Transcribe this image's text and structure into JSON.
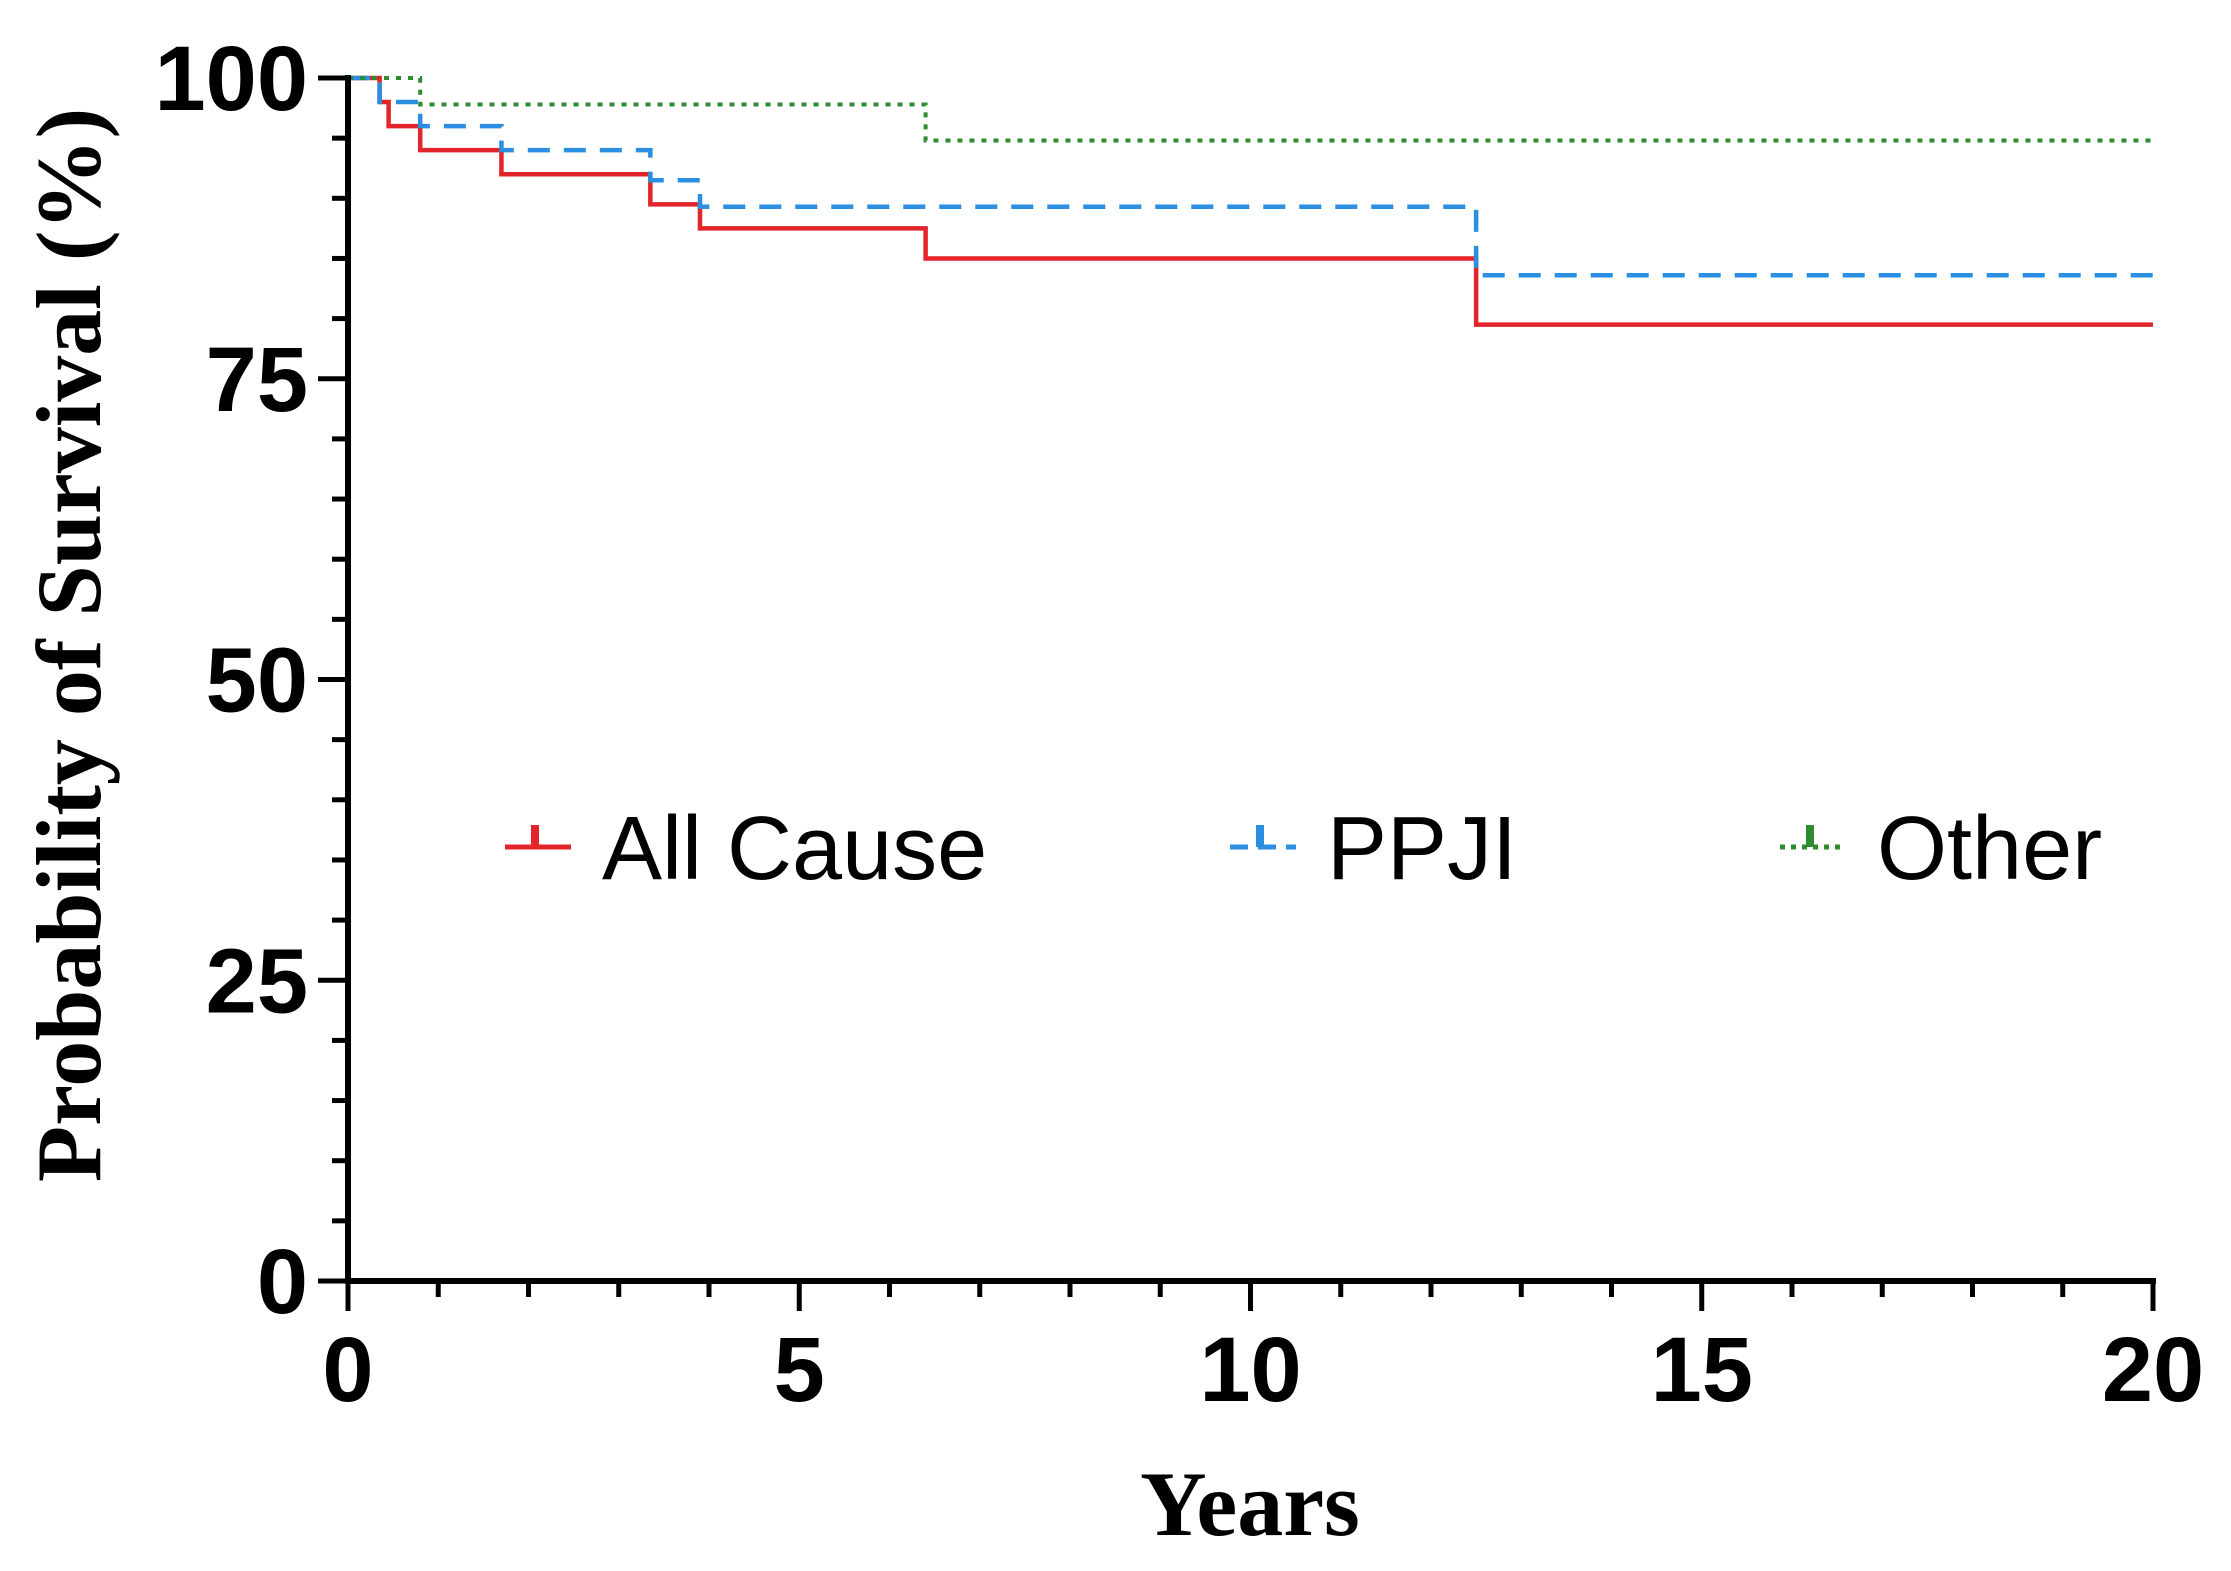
{
  "chart_data": {
    "type": "line",
    "subtype": "kaplan-meier-step",
    "title": "",
    "xlabel": "Years",
    "ylabel": "Probability of Survival (%)",
    "xlim": [
      0,
      20
    ],
    "ylim": [
      0,
      100
    ],
    "x_ticks": [
      0,
      5,
      10,
      15,
      20
    ],
    "x_tick_labels": [
      "0",
      "5",
      "10",
      "15",
      "20"
    ],
    "y_ticks": [
      0,
      25,
      50,
      75,
      100
    ],
    "y_tick_labels": [
      "0",
      "25",
      "50",
      "75",
      "100"
    ],
    "x_minor_step": 1,
    "y_minor_step": 5,
    "grid": false,
    "legend_position": "center",
    "series": [
      {
        "name": "All Cause",
        "color": "#e3242b",
        "style": "solid",
        "x": [
          0,
          0.35,
          0.45,
          0.8,
          1.7,
          3.35,
          3.9,
          6.4,
          12.5,
          20
        ],
        "y": [
          100,
          98,
          96,
          94,
          92,
          89.5,
          87.5,
          85,
          79.5,
          79.5
        ]
      },
      {
        "name": "PPJI",
        "color": "#2a8fe0",
        "style": "dashed",
        "x": [
          0,
          0.35,
          0.8,
          1.7,
          3.35,
          3.9,
          12.5,
          20
        ],
        "y": [
          100,
          98,
          96,
          94,
          91.5,
          89.3,
          83.6,
          83.6
        ]
      },
      {
        "name": "Other",
        "color": "#2e8b2e",
        "style": "dotted",
        "x": [
          0,
          0.8,
          6.4,
          20
        ],
        "y": [
          100,
          97.8,
          94.8,
          94.8
        ]
      }
    ]
  }
}
